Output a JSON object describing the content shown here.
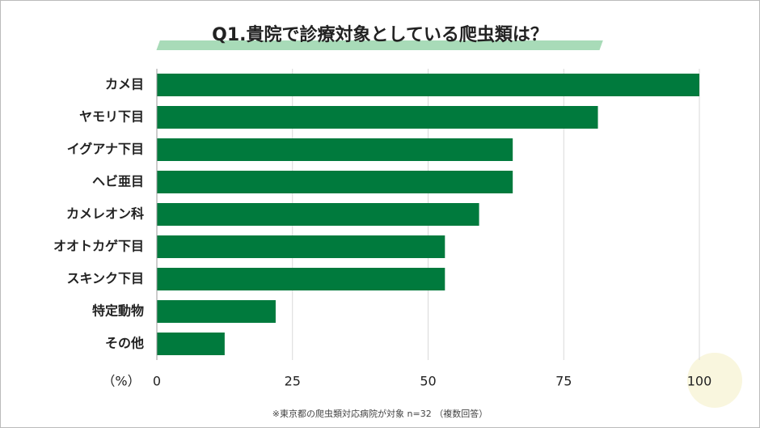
{
  "chart_data": {
    "type": "bar",
    "orientation": "horizontal",
    "title": "Q1.貴院で診療対象としている爬虫類は？",
    "categories": [
      "カメ目",
      "ヤモリ下目",
      "イグアナ下目",
      "ヘビ亜目",
      "カメレオン科",
      "オオトカゲ下目",
      "スキンク下目",
      "特定動物",
      "その他"
    ],
    "values": [
      100,
      81.3,
      65.6,
      65.6,
      59.4,
      53.1,
      53.1,
      21.9,
      12.5
    ],
    "color": "#007a3d",
    "xlim": [
      0,
      100
    ],
    "xticks": [
      0,
      25,
      50,
      75,
      100
    ],
    "grid": true,
    "x_label": "（%）",
    "footnote": "※東京都の爬虫類対応病院が対象 n=32 （複数回答）"
  }
}
